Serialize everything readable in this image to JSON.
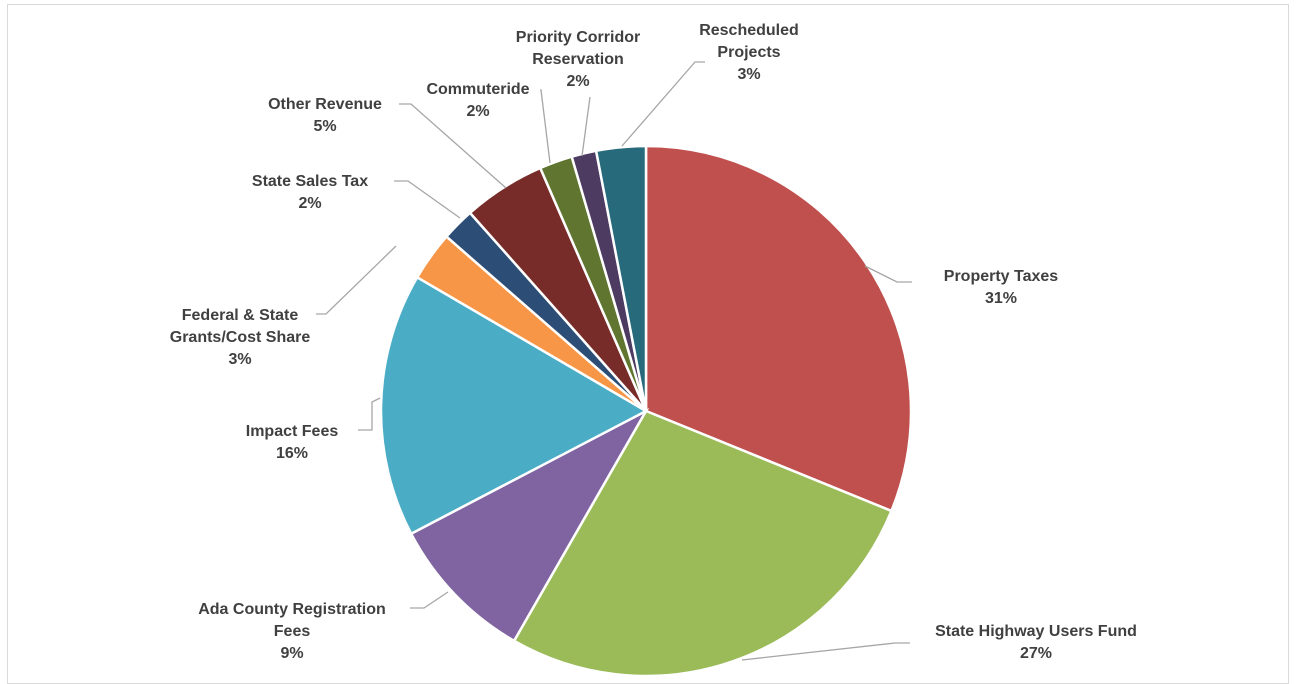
{
  "chart_data": {
    "type": "pie",
    "title": "",
    "start_angle_deg": 0,
    "direction": "clockwise",
    "legend": "none",
    "slices": [
      {
        "name": "Property Taxes",
        "value": 31,
        "label": "31%",
        "color": "#c0504d"
      },
      {
        "name": "State Highway Users Fund",
        "value": 27,
        "label": "27%",
        "color": "#9bbb59"
      },
      {
        "name": "Ada County Registration Fees",
        "value": 9,
        "label": "9%",
        "color": "#8064a2"
      },
      {
        "name": "Impact Fees",
        "value": 16,
        "label": "16%",
        "color": "#4bacc6"
      },
      {
        "name": "Federal & State Grants/Cost Share",
        "value": 3,
        "label": "3%",
        "color": "#f79646"
      },
      {
        "name": "State Sales Tax",
        "value": 2,
        "label": "2%",
        "color": "#2c4d75"
      },
      {
        "name": "Other Revenue",
        "value": 5,
        "label": "5%",
        "color": "#772c2a"
      },
      {
        "name": "Commuteride",
        "value": 2,
        "label": "2%",
        "color": "#5f7530"
      },
      {
        "name": "Priority Corridor Reservation",
        "value": 1.5,
        "label": "2%",
        "color": "#4d3b62"
      },
      {
        "name": "Rescheduled Projects",
        "value": 3,
        "label": "3%",
        "color": "#276a7c"
      }
    ]
  }
}
